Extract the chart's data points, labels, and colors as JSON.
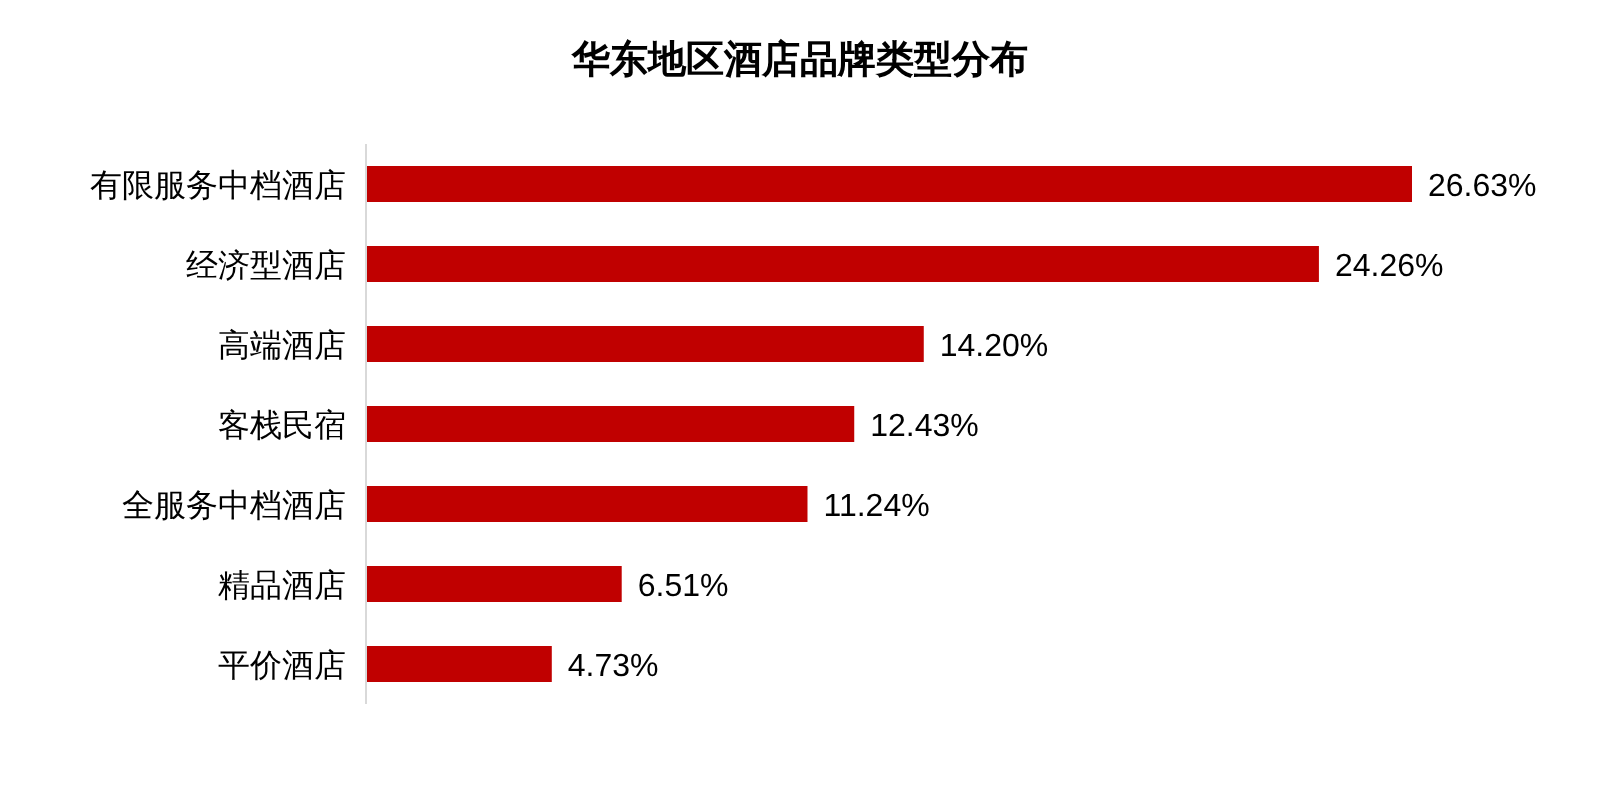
{
  "chart_data": {
    "type": "bar",
    "orientation": "horizontal",
    "title": "华东地区酒店品牌类型分布",
    "categories": [
      "有限服务中档酒店",
      "经济型酒店",
      "高端酒店",
      "客栈民宿",
      "全服务中档酒店",
      "精品酒店",
      "平价酒店"
    ],
    "values": [
      26.63,
      24.26,
      14.2,
      12.43,
      11.24,
      6.51,
      4.73
    ],
    "value_labels": [
      "26.63%",
      "24.26%",
      "14.20%",
      "12.43%",
      "11.24%",
      "6.51%",
      "4.73%"
    ],
    "color": "#c00000"
  }
}
